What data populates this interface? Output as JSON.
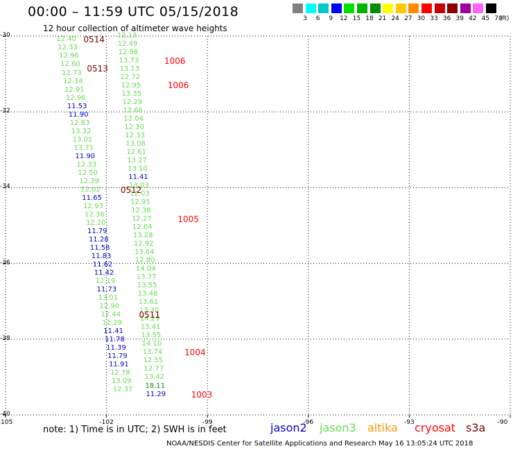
{
  "header": {
    "title": "00:00 – 11:59 UTC 05/15/2018",
    "subtitle": "12 hour collection of altimeter wave heights"
  },
  "colorbar": {
    "unit": "(ft)",
    "bins": [
      {
        "label": "3",
        "color": "#808080"
      },
      {
        "label": "6",
        "color": "#00ffff"
      },
      {
        "label": "9",
        "color": "#00c8c8"
      },
      {
        "label": "12",
        "color": "#0000ff"
      },
      {
        "label": "15",
        "color": "#00e000"
      },
      {
        "label": "18",
        "color": "#00b400"
      },
      {
        "label": "21",
        "color": "#008c00"
      },
      {
        "label": "24",
        "color": "#ffff00"
      },
      {
        "label": "27",
        "color": "#ffc800"
      },
      {
        "label": "30",
        "color": "#ff8c00"
      },
      {
        "label": "33",
        "color": "#ff0000"
      },
      {
        "label": "36",
        "color": "#c80000"
      },
      {
        "label": "39",
        "color": "#8c0000"
      },
      {
        "label": "42",
        "color": "#a000a0"
      },
      {
        "label": "45",
        "color": "#ff64ff"
      },
      {
        "label": "70",
        "color": "#000000"
      }
    ]
  },
  "axes": {
    "lat_ticks": [
      "-30",
      "-32",
      "-34",
      "-36",
      "-38",
      "-40"
    ],
    "lon_ticks": [
      "-105",
      "-102",
      "-99",
      "-96",
      "-93",
      "-90"
    ]
  },
  "colors": {
    "jason2": "#0000c8",
    "jason3": "#64dc50",
    "altika": "#ff9600",
    "cryosat": "#ff0000",
    "s3a": "#780000"
  },
  "tracks": [
    {
      "sat": "jason3",
      "points": [
        {
          "lat": -30.1,
          "lon": -103.2,
          "v": "12.40"
        },
        {
          "lat": -30.32,
          "lon": -103.16,
          "v": "12.33"
        },
        {
          "lat": -30.54,
          "lon": -103.12,
          "v": "12.96"
        },
        {
          "lat": -30.76,
          "lon": -103.08,
          "v": "12.60"
        },
        {
          "lat": -30.98,
          "lon": -103.04,
          "v": "12.73"
        },
        {
          "lat": -31.2,
          "lon": -103.0,
          "v": "12.34"
        },
        {
          "lat": -31.42,
          "lon": -102.96,
          "v": "12.91"
        },
        {
          "lat": -31.64,
          "lon": -102.92,
          "v": "12.96"
        }
      ]
    },
    {
      "sat": "jason2",
      "points": [
        {
          "lat": -31.86,
          "lon": -102.88,
          "v": "11.53"
        },
        {
          "lat": -32.08,
          "lon": -102.84,
          "v": "11.90"
        }
      ]
    },
    {
      "sat": "jason3",
      "points": [
        {
          "lat": -32.3,
          "lon": -102.8,
          "v": "12.83"
        },
        {
          "lat": -32.52,
          "lon": -102.76,
          "v": "13.32"
        },
        {
          "lat": -32.74,
          "lon": -102.72,
          "v": "13.01"
        },
        {
          "lat": -32.96,
          "lon": -102.68,
          "v": "13.71"
        }
      ]
    },
    {
      "sat": "jason2",
      "points": [
        {
          "lat": -33.18,
          "lon": -102.64,
          "v": "11.90"
        }
      ]
    },
    {
      "sat": "jason3",
      "points": [
        {
          "lat": -33.4,
          "lon": -102.6,
          "v": "12.33"
        },
        {
          "lat": -33.62,
          "lon": -102.56,
          "v": "12.50"
        },
        {
          "lat": -33.84,
          "lon": -102.52,
          "v": "12.39"
        },
        {
          "lat": -34.06,
          "lon": -102.48,
          "v": "12.02"
        }
      ]
    },
    {
      "sat": "jason2",
      "points": [
        {
          "lat": -34.28,
          "lon": -102.44,
          "v": "11.65"
        }
      ]
    },
    {
      "sat": "jason3",
      "points": [
        {
          "lat": -34.5,
          "lon": -102.4,
          "v": "12.93"
        },
        {
          "lat": -34.72,
          "lon": -102.36,
          "v": "12.36"
        },
        {
          "lat": -34.94,
          "lon": -102.32,
          "v": "12.20"
        }
      ]
    },
    {
      "sat": "jason2",
      "points": [
        {
          "lat": -35.16,
          "lon": -102.28,
          "v": "11.79"
        },
        {
          "lat": -35.38,
          "lon": -102.24,
          "v": "11.28"
        },
        {
          "lat": -35.6,
          "lon": -102.2,
          "v": "11.58"
        },
        {
          "lat": -35.82,
          "lon": -102.16,
          "v": "11.83"
        },
        {
          "lat": -36.04,
          "lon": -102.12,
          "v": "11.62"
        },
        {
          "lat": -36.26,
          "lon": -102.08,
          "v": "11.42"
        }
      ]
    },
    {
      "sat": "jason3",
      "points": [
        {
          "lat": -36.48,
          "lon": -102.04,
          "v": "12.19"
        }
      ]
    },
    {
      "sat": "jason2",
      "points": [
        {
          "lat": -36.7,
          "lon": -102.0,
          "v": "11.73"
        }
      ]
    },
    {
      "sat": "jason3",
      "points": [
        {
          "lat": -36.92,
          "lon": -101.96,
          "v": "13.01"
        },
        {
          "lat": -37.14,
          "lon": -101.92,
          "v": "12.90"
        },
        {
          "lat": -37.36,
          "lon": -101.88,
          "v": "12.44"
        },
        {
          "lat": -37.58,
          "lon": -101.84,
          "v": "12.29"
        }
      ]
    },
    {
      "sat": "jason2",
      "points": [
        {
          "lat": -37.8,
          "lon": -101.8,
          "v": "11.41"
        },
        {
          "lat": -38.02,
          "lon": -101.76,
          "v": "11.78"
        },
        {
          "lat": -38.24,
          "lon": -101.72,
          "v": "11.39"
        },
        {
          "lat": -38.46,
          "lon": -101.68,
          "v": "11.79"
        },
        {
          "lat": -38.68,
          "lon": -101.64,
          "v": "11.91"
        }
      ]
    },
    {
      "sat": "jason3",
      "points": [
        {
          "lat": -38.9,
          "lon": -101.6,
          "v": "12.78"
        },
        {
          "lat": -39.12,
          "lon": -101.56,
          "v": "13.09"
        },
        {
          "lat": -39.34,
          "lon": -101.52,
          "v": "12.37"
        }
      ]
    },
    {
      "sat": "jason3",
      "points": [
        {
          "lat": -30.0,
          "lon": -101.4,
          "v": "12.13"
        },
        {
          "lat": -30.22,
          "lon": -101.38,
          "v": "12.49"
        },
        {
          "lat": -30.44,
          "lon": -101.36,
          "v": "12.98"
        },
        {
          "lat": -30.66,
          "lon": -101.34,
          "v": "13.73"
        },
        {
          "lat": -30.88,
          "lon": -101.32,
          "v": "13.13"
        },
        {
          "lat": -31.1,
          "lon": -101.3,
          "v": "12.72"
        },
        {
          "lat": -31.32,
          "lon": -101.28,
          "v": "12.95"
        },
        {
          "lat": -31.54,
          "lon": -101.26,
          "v": "13.35"
        },
        {
          "lat": -31.76,
          "lon": -101.24,
          "v": "12.29"
        },
        {
          "lat": -31.98,
          "lon": -101.22,
          "v": "12.66"
        },
        {
          "lat": -32.2,
          "lon": -101.2,
          "v": "12.04"
        },
        {
          "lat": -32.42,
          "lon": -101.18,
          "v": "12.30"
        },
        {
          "lat": -32.64,
          "lon": -101.16,
          "v": "12.33"
        },
        {
          "lat": -32.86,
          "lon": -101.14,
          "v": "13.08"
        },
        {
          "lat": -33.08,
          "lon": -101.12,
          "v": "12.61"
        },
        {
          "lat": -33.3,
          "lon": -101.1,
          "v": "13.27"
        },
        {
          "lat": -33.52,
          "lon": -101.08,
          "v": "13.10"
        }
      ]
    },
    {
      "sat": "jason2",
      "points": [
        {
          "lat": -33.74,
          "lon": -101.06,
          "v": "11.41"
        }
      ]
    },
    {
      "sat": "jason3",
      "points": [
        {
          "lat": -33.96,
          "lon": -101.04,
          "v": "13.03"
        },
        {
          "lat": -34.18,
          "lon": -101.02,
          "v": "12.03"
        },
        {
          "lat": -34.4,
          "lon": -101.0,
          "v": "12.95"
        },
        {
          "lat": -34.62,
          "lon": -100.98,
          "v": "12.38"
        },
        {
          "lat": -34.84,
          "lon": -100.96,
          "v": "12.27"
        },
        {
          "lat": -35.06,
          "lon": -100.94,
          "v": "12.64"
        },
        {
          "lat": -35.28,
          "lon": -100.92,
          "v": "13.28"
        },
        {
          "lat": -35.5,
          "lon": -100.9,
          "v": "12.92"
        },
        {
          "lat": -35.72,
          "lon": -100.88,
          "v": "13.64"
        },
        {
          "lat": -35.94,
          "lon": -100.86,
          "v": "12.80"
        },
        {
          "lat": -36.16,
          "lon": -100.84,
          "v": "14.04"
        },
        {
          "lat": -36.38,
          "lon": -100.82,
          "v": "13.77"
        },
        {
          "lat": -36.6,
          "lon": -100.8,
          "v": "13.55"
        },
        {
          "lat": -36.82,
          "lon": -100.78,
          "v": "13.48"
        },
        {
          "lat": -37.04,
          "lon": -100.76,
          "v": "13.61"
        },
        {
          "lat": -37.26,
          "lon": -100.74,
          "v": "13.30"
        },
        {
          "lat": -37.48,
          "lon": -100.72,
          "v": "14.29"
        },
        {
          "lat": -37.7,
          "lon": -100.7,
          "v": "13.41"
        },
        {
          "lat": -37.92,
          "lon": -100.68,
          "v": "13.55"
        },
        {
          "lat": -38.14,
          "lon": -100.66,
          "v": "14.10"
        },
        {
          "lat": -38.36,
          "lon": -100.64,
          "v": "13.74"
        },
        {
          "lat": -38.58,
          "lon": -100.62,
          "v": "12.55"
        },
        {
          "lat": -38.8,
          "lon": -100.6,
          "v": "12.77"
        },
        {
          "lat": -39.02,
          "lon": -100.58,
          "v": "13.42"
        }
      ]
    },
    {
      "sat": "jason3_dark",
      "points": [
        {
          "lat": -39.24,
          "lon": -100.56,
          "v": "18.11"
        }
      ]
    },
    {
      "sat": "jason2",
      "points": [
        {
          "lat": -39.46,
          "lon": -100.54,
          "v": "11.29"
        }
      ]
    }
  ],
  "markers": [
    {
      "label": "0514",
      "lat": -30.1,
      "lon": -102.6,
      "sat": "s3a"
    },
    {
      "label": "0513",
      "lat": -30.86,
      "lon": -102.5,
      "sat": "s3a"
    },
    {
      "label": "0512",
      "lat": -34.06,
      "lon": -101.5,
      "sat": "s3a"
    },
    {
      "label": "0511",
      "lat": -37.36,
      "lon": -100.95,
      "sat": "s3a"
    },
    {
      "label": "1006",
      "lat": -30.66,
      "lon": -100.2,
      "sat": "cryosat"
    },
    {
      "label": "1006",
      "lat": -31.3,
      "lon": -100.1,
      "sat": "cryosat"
    },
    {
      "label": "1005",
      "lat": -34.84,
      "lon": -99.8,
      "sat": "cryosat"
    },
    {
      "label": "1004",
      "lat": -38.36,
      "lon": -99.6,
      "sat": "cryosat"
    },
    {
      "label": "1003",
      "lat": -39.46,
      "lon": -99.4,
      "sat": "cryosat"
    }
  ],
  "note": "note: 1) Time is in UTC; 2) SWH is in feet",
  "legend": [
    {
      "label": "jason2",
      "sat": "jason2"
    },
    {
      "label": "jason3",
      "sat": "jason3"
    },
    {
      "label": "altika",
      "sat": "altika"
    },
    {
      "label": "cryosat",
      "sat": "cryosat"
    },
    {
      "label": "s3a",
      "sat": "s3a"
    }
  ],
  "credit": "NOAA/NESDIS Center for Satellite Applications and Research    May 16 13:05:24 UTC 2018"
}
